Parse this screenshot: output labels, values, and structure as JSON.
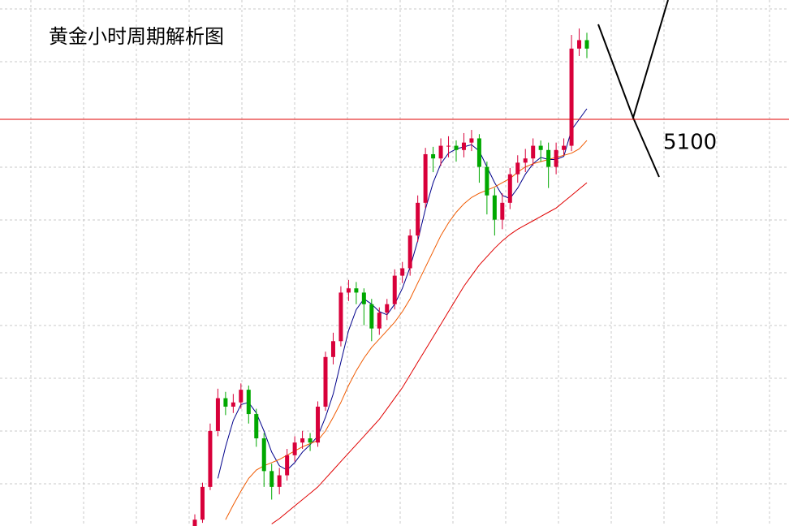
{
  "chart_data": {
    "type": "candlestick",
    "title": "黄金小时周期解析图",
    "ylim": [
      4715,
      5213
    ],
    "up_color": "#d8003a",
    "down_color": "#00a800",
    "open": [
      4712,
      4721,
      4752,
      4805,
      4836,
      4828,
      4832,
      4844,
      4821,
      4798,
      4767,
      4752,
      4763,
      4782,
      4794,
      4798,
      4794,
      4828,
      4875,
      4890,
      4936,
      4940,
      4936,
      4925,
      4902,
      4917,
      4925,
      4952,
      4959,
      4990,
      5021,
      5067,
      5063,
      5075,
      5075,
      5071,
      5078,
      5082,
      5055,
      5028,
      5005,
      5021,
      5048,
      5059,
      5063,
      5075,
      5071,
      5055,
      5071,
      5075,
      5167,
      5175
    ],
    "high": [
      4726,
      4756,
      4812,
      4845,
      4842,
      4840,
      4850,
      4848,
      4826,
      4803,
      4774,
      4770,
      4788,
      4800,
      4805,
      4803,
      4833,
      4880,
      4898,
      4942,
      4948,
      4946,
      4940,
      4930,
      4922,
      4930,
      4958,
      4965,
      4996,
      5028,
      5073,
      5074,
      5082,
      5084,
      5080,
      5087,
      5090,
      5086,
      5060,
      5035,
      5030,
      5054,
      5066,
      5072,
      5082,
      5080,
      5078,
      5078,
      5082,
      5180,
      5186,
      5182
    ],
    "low": [
      4708,
      4718,
      4749,
      4800,
      4820,
      4822,
      4826,
      4812,
      4790,
      4752,
      4740,
      4745,
      4758,
      4776,
      4788,
      4786,
      4790,
      4824,
      4868,
      4885,
      4928,
      4925,
      4905,
      4890,
      4896,
      4910,
      4920,
      4945,
      4952,
      4984,
      5016,
      5050,
      5056,
      5064,
      5060,
      5064,
      5070,
      5040,
      5010,
      4990,
      4996,
      5015,
      5040,
      5050,
      5056,
      5060,
      5035,
      5048,
      5066,
      5070,
      5160,
      5158
    ],
    "close": [
      4721,
      4752,
      4805,
      4836,
      4828,
      4832,
      4844,
      4821,
      4798,
      4767,
      4752,
      4763,
      4782,
      4794,
      4798,
      4794,
      4828,
      4875,
      4890,
      4936,
      4940,
      4936,
      4925,
      4902,
      4917,
      4925,
      4952,
      4959,
      4990,
      5021,
      5067,
      5063,
      5075,
      5075,
      5071,
      5078,
      5082,
      5055,
      5028,
      5005,
      5021,
      5048,
      5059,
      5063,
      5075,
      5071,
      5055,
      5071,
      5075,
      5167,
      5175,
      5167
    ],
    "lines": [
      {
        "color": "#00008b",
        "values": [
          null,
          null,
          null,
          4760,
          4790,
          4815,
          4830,
          4832,
          4822,
          4805,
          4785,
          4772,
          4768,
          4775,
          4785,
          4792,
          4800,
          4818,
          4840,
          4870,
          4900,
          4920,
          4930,
          4925,
          4918,
          4915,
          4925,
          4940,
          4960,
          4985,
          5015,
          5040,
          5058,
          5068,
          5072,
          5074,
          5076,
          5070,
          5055,
          5040,
          5028,
          5025,
          5035,
          5048,
          5058,
          5064,
          5062,
          5062,
          5065,
          5090,
          5100,
          5110
        ]
      },
      {
        "color": "#f05a00",
        "values": [
          null,
          null,
          null,
          null,
          4721,
          4735,
          4748,
          4760,
          4768,
          4772,
          4775,
          4778,
          4782,
          4786,
          4790,
          4793,
          4796,
          4805,
          4818,
          4832,
          4848,
          4862,
          4874,
          4884,
          4892,
          4900,
          4908,
          4918,
          4930,
          4945,
          4960,
          4975,
          4990,
          5002,
          5012,
          5020,
          5026,
          5030,
          5033,
          5036,
          5040,
          5044,
          5050,
          5055,
          5058,
          5060,
          5062,
          5064,
          5066,
          5068,
          5072,
          5080
        ]
      },
      {
        "color": "#e00000",
        "values": [
          null,
          null,
          null,
          null,
          null,
          null,
          null,
          null,
          null,
          null,
          4717,
          4722,
          4728,
          4734,
          4740,
          4746,
          4752,
          4760,
          4768,
          4776,
          4784,
          4792,
          4800,
          4808,
          4816,
          4826,
          4836,
          4846,
          4858,
          4870,
          4882,
          4894,
          4906,
          4918,
          4930,
          4942,
          4952,
          4962,
          4970,
          4978,
          4985,
          4991,
          4996,
          5000,
          5004,
          5008,
          5012,
          5016,
          5022,
          5028,
          5034,
          5040
        ]
      }
    ],
    "hline": {
      "value": 5100,
      "label": "5100",
      "color": "#e00000"
    }
  }
}
